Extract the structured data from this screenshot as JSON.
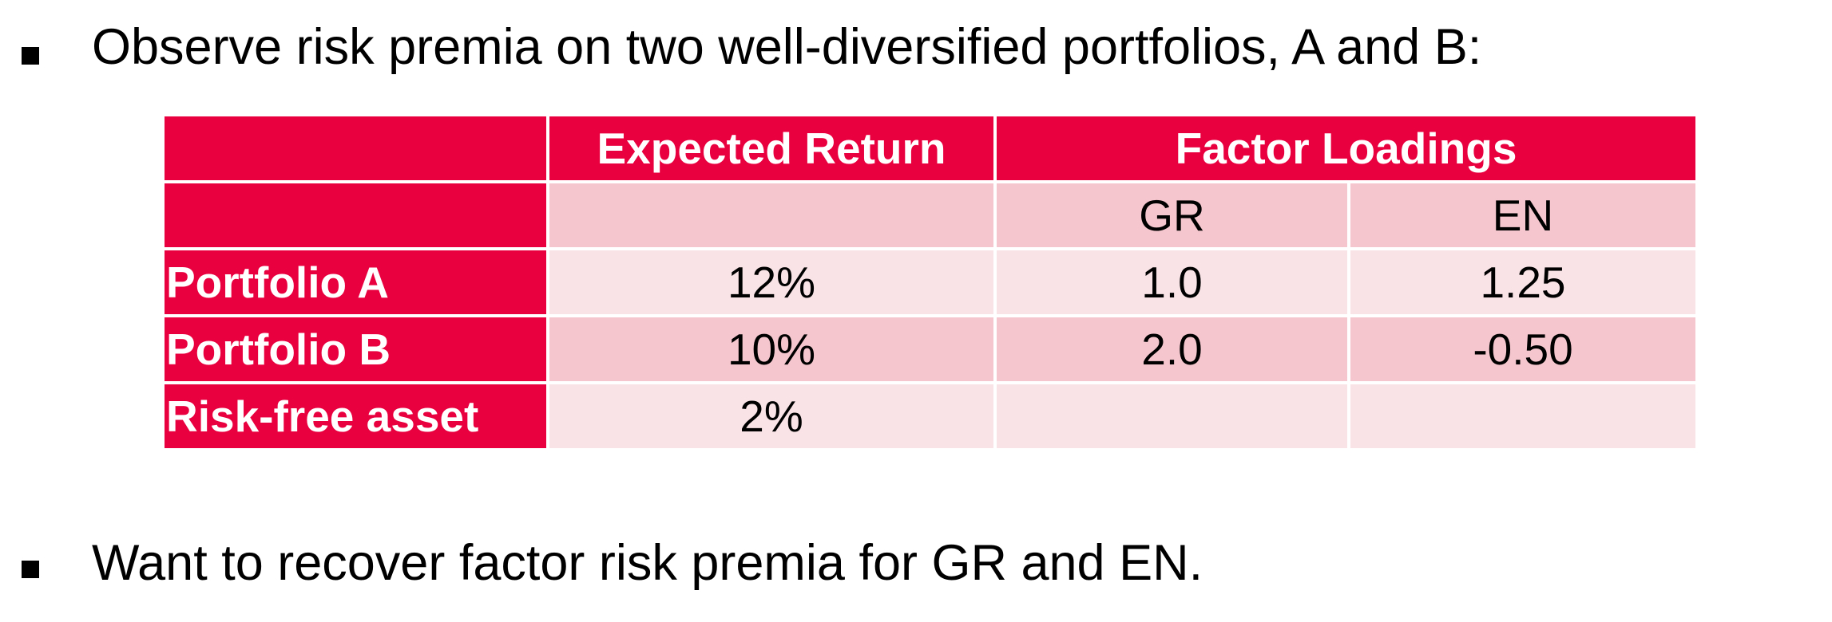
{
  "bullets": {
    "first": "Observe risk premia on two well-diversified portfolios, A and B:",
    "second": "Want to recover factor risk premia for GR and EN."
  },
  "table": {
    "header": {
      "row_label": "",
      "expected_return": "Expected Return",
      "factor_loadings": "Factor Loadings"
    },
    "subheader": {
      "row_label": "",
      "expected_return": "",
      "gr": "GR",
      "en": "EN"
    },
    "rows": [
      {
        "label": "Portfolio A",
        "expected_return": "12%",
        "gr": "1.0",
        "en": "1.25"
      },
      {
        "label": "Portfolio B",
        "expected_return": "10%",
        "gr": "2.0",
        "en": "-0.50"
      },
      {
        "label": "Risk-free asset",
        "expected_return": "2%",
        "gr": "",
        "en": ""
      }
    ]
  },
  "colors": {
    "header_red": "#e8003f",
    "row_pink_dark": "#f5c6cd",
    "row_pink_light": "#fae3e6"
  }
}
